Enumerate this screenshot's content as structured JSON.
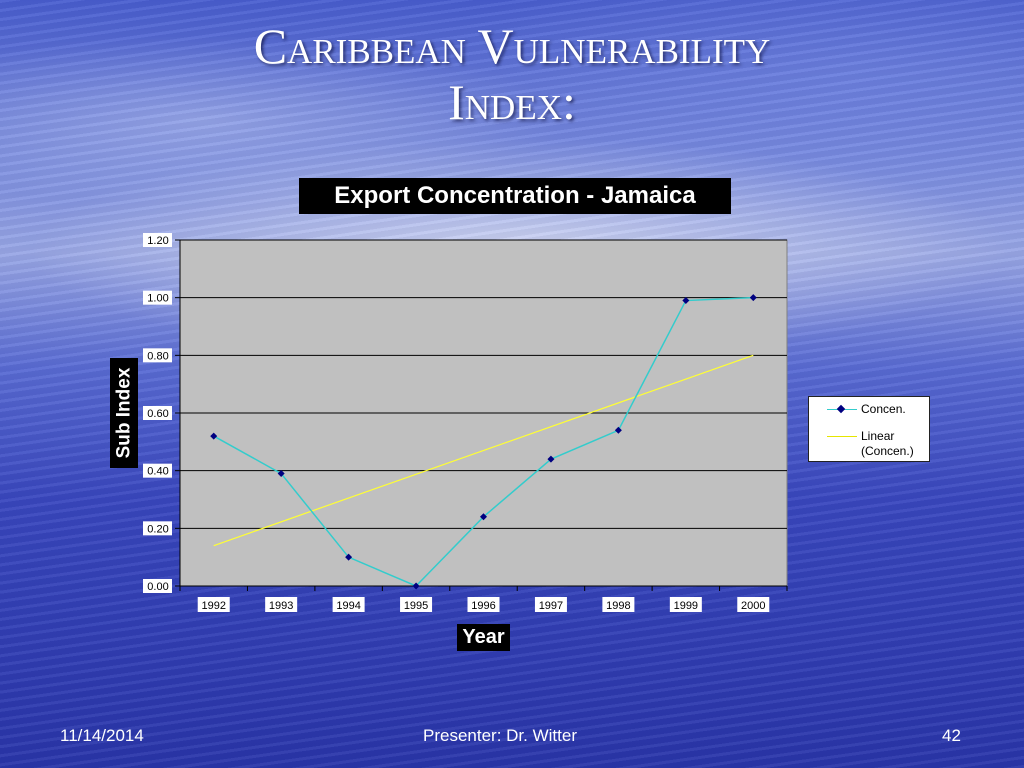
{
  "slide": {
    "title_line1": "Caribbean Vulnerability",
    "title_line2": "Index:",
    "footer_date": "11/14/2014",
    "footer_presenter": "Presenter: Dr. Witter",
    "footer_page": "42"
  },
  "colors": {
    "plot_bg": "#c0c0c0",
    "series": "#33cccc",
    "marker": "#000080",
    "trend": "#ffff33"
  },
  "chart_data": {
    "type": "line",
    "title": "Export Concentration - Jamaica",
    "xlabel": "Year",
    "ylabel": "Sub Index",
    "categories": [
      "1992",
      "1993",
      "1994",
      "1995",
      "1996",
      "1997",
      "1998",
      "1999",
      "2000"
    ],
    "series": [
      {
        "name": "Concen.",
        "values": [
          0.52,
          0.39,
          0.1,
          0.0,
          0.24,
          0.44,
          0.54,
          0.99,
          1.0
        ]
      }
    ],
    "trendline": {
      "name": "Linear (Concen.)",
      "type": "linear",
      "start": 0.14,
      "end": 0.8
    },
    "ylim": [
      0,
      1.2
    ],
    "yticks": [
      "0.00",
      "0.20",
      "0.40",
      "0.60",
      "0.80",
      "1.00",
      "1.20"
    ],
    "grid": true,
    "legend_position": "right"
  }
}
